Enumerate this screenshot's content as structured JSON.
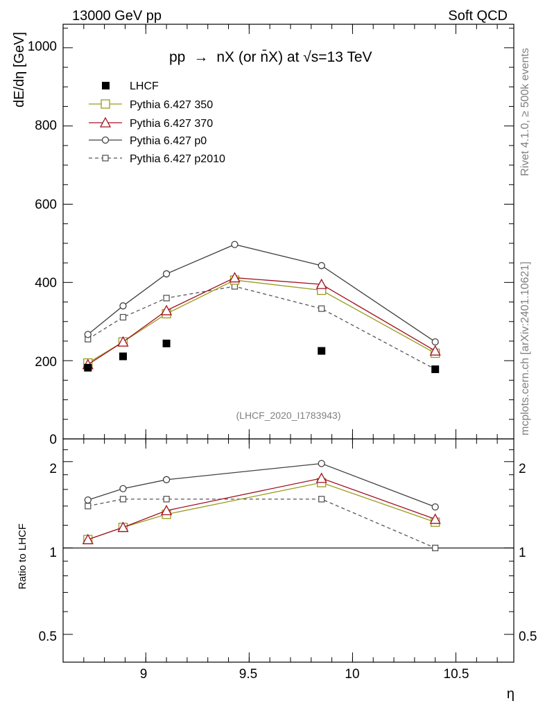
{
  "header": {
    "left": "13000 GeV pp",
    "right": "Soft QCD"
  },
  "side_text": {
    "upper": "Rivet 4.1.0, ≥ 500k events",
    "lower": "mcplots.cern.ch [arXiv:2401.10621]"
  },
  "chart_data": [
    {
      "type": "line",
      "panel": "main",
      "title_parts": {
        "lhs": "pp",
        "arrow": "→",
        "rhs": "nX (or n̄X) at √s=13 TeV"
      },
      "ylabel": "dE/dη [GeV]",
      "xlabel": "η",
      "annotation": "(LHCF_2020_I1783943)",
      "xlim": [
        8.6,
        10.78
      ],
      "ylim": [
        0,
        1060
      ],
      "xticks": [
        9,
        9.5,
        10,
        10.5
      ],
      "xtick_labels": [
        "9",
        "9.5",
        "10",
        "10.5"
      ],
      "yticks": [
        0,
        200,
        400,
        600,
        800,
        1000
      ],
      "ytick_labels": [
        "0",
        "200",
        "400",
        "600",
        "800",
        "1000"
      ],
      "x": [
        8.72,
        8.89,
        9.1,
        9.43,
        9.85,
        10.4
      ],
      "series": [
        {
          "name": "LHCF",
          "style": "data",
          "color": "#000000",
          "values": [
            182,
            211,
            244,
            null,
            225,
            178
          ]
        },
        {
          "name": "Pythia 6.427 350",
          "style": "square",
          "color": "#9a9a1e",
          "values": [
            194,
            248,
            320,
            406,
            380,
            219
          ]
        },
        {
          "name": "Pythia 6.427 370",
          "style": "triangle",
          "color": "#a01020",
          "values": [
            190,
            248,
            328,
            412,
            395,
            225
          ]
        },
        {
          "name": "Pythia 6.427 p0",
          "style": "circle",
          "color": "#404040",
          "values": [
            267,
            340,
            422,
            497,
            443,
            248
          ]
        },
        {
          "name": "Pythia 6.427 p2010",
          "style": "dashed-square",
          "color": "#555555",
          "values": [
            255,
            311,
            360,
            390,
            333,
            178
          ]
        }
      ]
    },
    {
      "type": "line",
      "panel": "ratio",
      "ylabel": "Ratio to LHCF",
      "yscale": "log",
      "ylim": [
        0.4,
        2.4
      ],
      "yticks": [
        0.5,
        1,
        2
      ],
      "ytick_labels": [
        "0.5",
        "1",
        "2"
      ],
      "x": [
        8.72,
        8.89,
        9.1,
        9.85,
        10.4
      ],
      "series": [
        {
          "name": "Pythia 6.427 350",
          "values": [
            1.07,
            1.18,
            1.31,
            1.69,
            1.23
          ]
        },
        {
          "name": "Pythia 6.427 370",
          "values": [
            1.07,
            1.18,
            1.35,
            1.75,
            1.26
          ]
        },
        {
          "name": "Pythia 6.427 p0",
          "values": [
            1.47,
            1.61,
            1.73,
            1.97,
            1.39
          ]
        },
        {
          "name": "Pythia 6.427 p2010",
          "values": [
            1.4,
            1.48,
            1.48,
            1.48,
            1.0
          ]
        }
      ]
    }
  ]
}
